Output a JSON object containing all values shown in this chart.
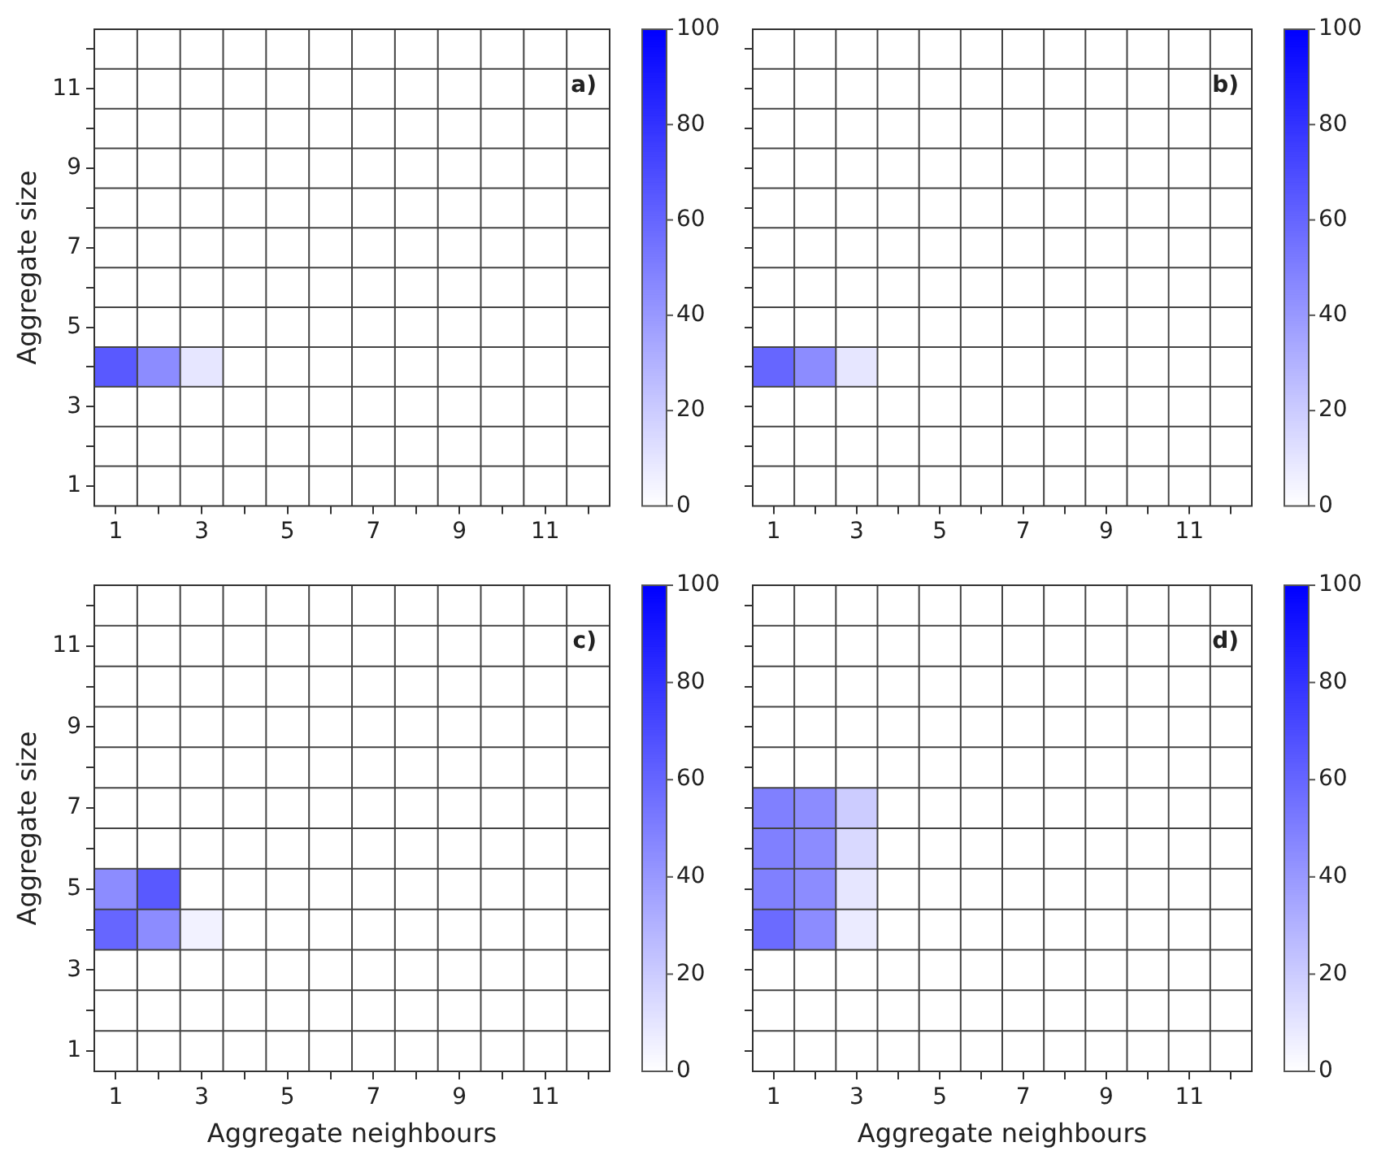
{
  "chart_data": [
    {
      "type": "heatmap",
      "ylabel": "Aggregate size",
      "categories": [
        "1",
        null,
        "3",
        null,
        "5",
        null,
        "7",
        null,
        "9",
        null,
        "11",
        null
      ],
      "y_categories": [
        null,
        "11",
        null,
        "9",
        null,
        "7",
        null,
        "5",
        null,
        "3",
        null,
        "1"
      ],
      "cells": [
        [
          0,
          0,
          0,
          0,
          0,
          0,
          0,
          0,
          0,
          0,
          0,
          0
        ],
        [
          0,
          0,
          0,
          0,
          0,
          0,
          0,
          0,
          0,
          0,
          0,
          0
        ],
        [
          0,
          0,
          0,
          0,
          0,
          0,
          0,
          0,
          0,
          0,
          0,
          0
        ],
        [
          0,
          0,
          0,
          0,
          0,
          0,
          0,
          0,
          0,
          0,
          0,
          0
        ],
        [
          0,
          0,
          0,
          0,
          0,
          0,
          0,
          0,
          0,
          0,
          0,
          0
        ],
        [
          0,
          0,
          0,
          0,
          0,
          0,
          0,
          0,
          0,
          0,
          0,
          0
        ],
        [
          0,
          0,
          0,
          0,
          0,
          0,
          0,
          0,
          0,
          0,
          0,
          0
        ],
        [
          0,
          0,
          0,
          0,
          0,
          0,
          0,
          0,
          0,
          0,
          0,
          0
        ],
        [
          65,
          45,
          10,
          0,
          0,
          0,
          0,
          0,
          0,
          0,
          0,
          0
        ],
        [
          0,
          0,
          0,
          0,
          0,
          0,
          0,
          0,
          0,
          0,
          0,
          0
        ],
        [
          0,
          0,
          0,
          0,
          0,
          0,
          0,
          0,
          0,
          0,
          0,
          0
        ],
        [
          0,
          0,
          0,
          0,
          0,
          0,
          0,
          0,
          0,
          0,
          0,
          0
        ]
      ],
      "clim": [
        0,
        100
      ],
      "cticks": [
        0,
        20,
        40,
        60,
        80,
        100
      ],
      "grid": true,
      "annotations": [
        "a)"
      ]
    },
    {
      "type": "heatmap",
      "categories": [
        "1",
        null,
        "3",
        null,
        "5",
        null,
        "7",
        null,
        "9",
        null,
        "11",
        null
      ],
      "y_categories": [
        null,
        "11",
        null,
        "9",
        null,
        "7",
        null,
        "5",
        null,
        "3",
        null,
        "1"
      ],
      "cells": [
        [
          0,
          0,
          0,
          0,
          0,
          0,
          0,
          0,
          0,
          0,
          0,
          0
        ],
        [
          0,
          0,
          0,
          0,
          0,
          0,
          0,
          0,
          0,
          0,
          0,
          0
        ],
        [
          0,
          0,
          0,
          0,
          0,
          0,
          0,
          0,
          0,
          0,
          0,
          0
        ],
        [
          0,
          0,
          0,
          0,
          0,
          0,
          0,
          0,
          0,
          0,
          0,
          0
        ],
        [
          0,
          0,
          0,
          0,
          0,
          0,
          0,
          0,
          0,
          0,
          0,
          0
        ],
        [
          0,
          0,
          0,
          0,
          0,
          0,
          0,
          0,
          0,
          0,
          0,
          0
        ],
        [
          0,
          0,
          0,
          0,
          0,
          0,
          0,
          0,
          0,
          0,
          0,
          0
        ],
        [
          0,
          0,
          0,
          0,
          0,
          0,
          0,
          0,
          0,
          0,
          0,
          0
        ],
        [
          60,
          45,
          10,
          0,
          0,
          0,
          0,
          0,
          0,
          0,
          0,
          0
        ],
        [
          0,
          0,
          0,
          0,
          0,
          0,
          0,
          0,
          0,
          0,
          0,
          0
        ],
        [
          0,
          0,
          0,
          0,
          0,
          0,
          0,
          0,
          0,
          0,
          0,
          0
        ],
        [
          0,
          0,
          0,
          0,
          0,
          0,
          0,
          0,
          0,
          0,
          0,
          0
        ]
      ],
      "clim": [
        0,
        100
      ],
      "cticks": [
        0,
        20,
        40,
        60,
        80,
        100
      ],
      "grid": true,
      "tick_labels": "x",
      "annotations": [
        "b)"
      ]
    },
    {
      "type": "heatmap",
      "xlabel": "Aggregate neighbours",
      "ylabel": "Aggregate size",
      "categories": [
        "1",
        null,
        "3",
        null,
        "5",
        null,
        "7",
        null,
        "9",
        null,
        "11",
        null
      ],
      "y_categories": [
        null,
        "11",
        null,
        "9",
        null,
        "7",
        null,
        "5",
        null,
        "3",
        null,
        "1"
      ],
      "cells": [
        [
          0,
          0,
          0,
          0,
          0,
          0,
          0,
          0,
          0,
          0,
          0,
          0
        ],
        [
          0,
          0,
          0,
          0,
          0,
          0,
          0,
          0,
          0,
          0,
          0,
          0
        ],
        [
          0,
          0,
          0,
          0,
          0,
          0,
          0,
          0,
          0,
          0,
          0,
          0
        ],
        [
          0,
          0,
          0,
          0,
          0,
          0,
          0,
          0,
          0,
          0,
          0,
          0
        ],
        [
          0,
          0,
          0,
          0,
          0,
          0,
          0,
          0,
          0,
          0,
          0,
          0
        ],
        [
          0,
          0,
          0,
          0,
          0,
          0,
          0,
          0,
          0,
          0,
          0,
          0
        ],
        [
          0,
          0,
          0,
          0,
          0,
          0,
          0,
          0,
          0,
          0,
          0,
          0
        ],
        [
          45,
          65,
          0,
          0,
          0,
          0,
          0,
          0,
          0,
          0,
          0,
          0
        ],
        [
          60,
          45,
          5,
          0,
          0,
          0,
          0,
          0,
          0,
          0,
          0,
          0
        ],
        [
          0,
          0,
          0,
          0,
          0,
          0,
          0,
          0,
          0,
          0,
          0,
          0
        ],
        [
          0,
          0,
          0,
          0,
          0,
          0,
          0,
          0,
          0,
          0,
          0,
          0
        ],
        [
          0,
          0,
          0,
          0,
          0,
          0,
          0,
          0,
          0,
          0,
          0,
          0
        ]
      ],
      "clim": [
        0,
        100
      ],
      "cticks": [
        0,
        20,
        40,
        60,
        80,
        100
      ],
      "grid": true,
      "annotations": [
        "c)"
      ]
    },
    {
      "type": "heatmap",
      "xlabel": "Aggregate neighbours",
      "categories": [
        "1",
        null,
        "3",
        null,
        "5",
        null,
        "7",
        null,
        "9",
        null,
        "11",
        null
      ],
      "y_categories": [
        null,
        "11",
        null,
        "9",
        null,
        "7",
        null,
        "5",
        null,
        "3",
        null,
        "1"
      ],
      "cells": [
        [
          0,
          0,
          0,
          0,
          0,
          0,
          0,
          0,
          0,
          0,
          0,
          0
        ],
        [
          0,
          0,
          0,
          0,
          0,
          0,
          0,
          0,
          0,
          0,
          0,
          0
        ],
        [
          0,
          0,
          0,
          0,
          0,
          0,
          0,
          0,
          0,
          0,
          0,
          0
        ],
        [
          0,
          0,
          0,
          0,
          0,
          0,
          0,
          0,
          0,
          0,
          0,
          0
        ],
        [
          0,
          0,
          0,
          0,
          0,
          0,
          0,
          0,
          0,
          0,
          0,
          0
        ],
        [
          50,
          45,
          20,
          0,
          0,
          0,
          0,
          0,
          0,
          0,
          0,
          0
        ],
        [
          50,
          45,
          15,
          0,
          0,
          0,
          0,
          0,
          0,
          0,
          0,
          0
        ],
        [
          50,
          45,
          10,
          0,
          0,
          0,
          0,
          0,
          0,
          0,
          0,
          0
        ],
        [
          58,
          45,
          8,
          0,
          0,
          0,
          0,
          0,
          0,
          0,
          0,
          0
        ],
        [
          0,
          0,
          0,
          0,
          0,
          0,
          0,
          0,
          0,
          0,
          0,
          0
        ],
        [
          0,
          0,
          0,
          0,
          0,
          0,
          0,
          0,
          0,
          0,
          0,
          0
        ],
        [
          0,
          0,
          0,
          0,
          0,
          0,
          0,
          0,
          0,
          0,
          0,
          0
        ]
      ],
      "clim": [
        0,
        100
      ],
      "cticks": [
        0,
        20,
        40,
        60,
        80,
        100
      ],
      "grid": true,
      "tick_labels": "x",
      "annotations": [
        "d)"
      ]
    }
  ]
}
